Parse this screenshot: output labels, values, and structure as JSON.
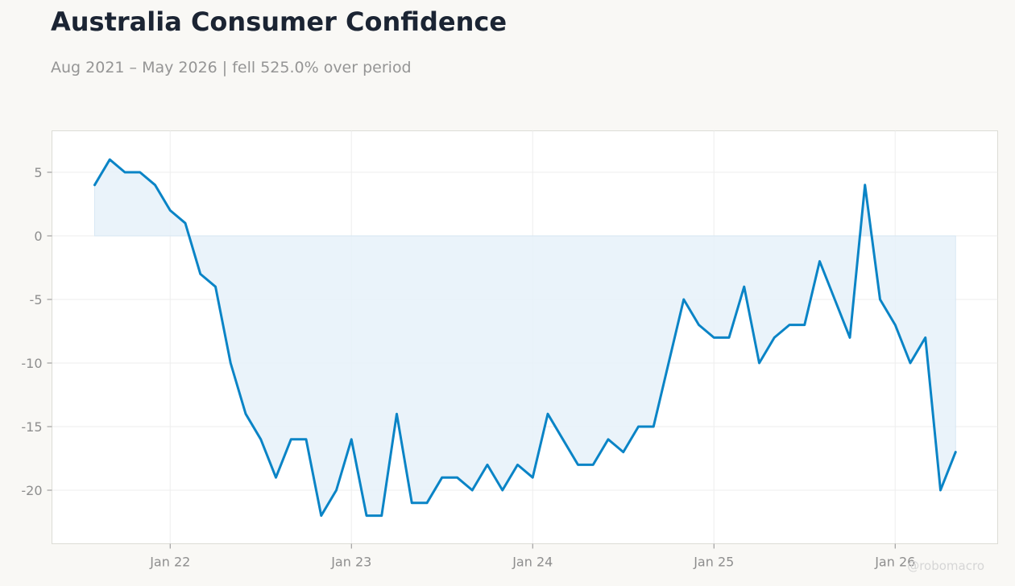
{
  "header": {
    "title": "Australia Consumer Confidence",
    "subtitle": "Aug 2021 – May 2026 | fell 525.0% over period"
  },
  "watermark": "@robomacro",
  "colors": {
    "background": "#f9f8f5",
    "plot_background": "#ffffff",
    "line": "#0a84c6",
    "fill": "#e8f2fa",
    "grid": "#eeeeee",
    "title": "#1b2433",
    "subtitle": "#959595"
  },
  "chart_data": {
    "type": "area",
    "title": "Australia Consumer Confidence",
    "subtitle": "Aug 2021 – May 2026 | fell 525.0% over period",
    "xlabel": "",
    "ylabel": "",
    "x_start": "2021-08",
    "x_end": "2026-05",
    "frequency": "monthly",
    "x_ticks": [
      "Jan 22",
      "Jan 23",
      "Jan 24",
      "Jan 25",
      "Jan 26"
    ],
    "y_ticks": [
      5,
      0,
      -5,
      -10,
      -15,
      -20
    ],
    "ylim": [
      -24.2,
      8.1
    ],
    "grid": true,
    "legend": "none",
    "series": [
      {
        "values": [
          4,
          6,
          5,
          5,
          4,
          2,
          1,
          -3,
          -4,
          -10,
          -14,
          -16,
          -19,
          -16,
          -16,
          -22,
          -20,
          -16,
          -22,
          -22,
          -14,
          -21,
          -21,
          -19,
          -19,
          -20,
          -18,
          -20,
          -18,
          -19,
          -14,
          -16,
          -18,
          -18,
          -16,
          -17,
          -15,
          -15,
          -10,
          -5,
          -7,
          -8,
          -8,
          -4,
          -10,
          -8,
          -7,
          -7,
          -2,
          -5,
          -8,
          4,
          -5,
          -7,
          -10,
          -8,
          -20,
          -17
        ]
      }
    ]
  }
}
